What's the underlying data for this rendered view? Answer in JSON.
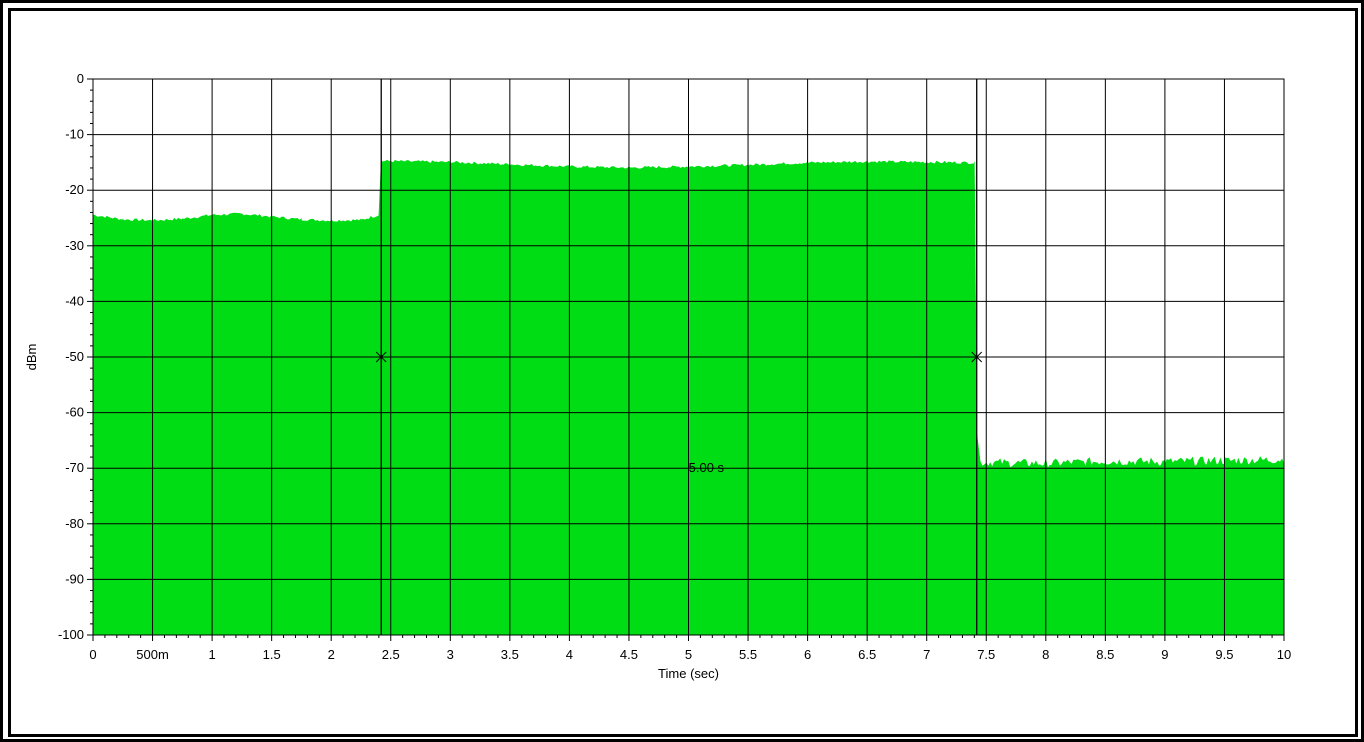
{
  "chart_data": {
    "type": "area",
    "xlabel": "Time (sec)",
    "ylabel": "dBm",
    "xlim": [
      0,
      10
    ],
    "ylim": [
      -100,
      0
    ],
    "grid": true,
    "x_ticks": [
      0,
      0.5,
      1,
      1.5,
      2,
      2.5,
      3,
      3.5,
      4,
      4.5,
      5,
      5.5,
      6,
      6.5,
      7,
      7.5,
      8,
      8.5,
      9,
      9.5,
      10
    ],
    "x_tick_labels": [
      "0",
      "500m",
      "1",
      "1.5",
      "2",
      "2.5",
      "3",
      "3.5",
      "4",
      "4.5",
      "5",
      "5.5",
      "6",
      "6.5",
      "7",
      "7.5",
      "8",
      "8.5",
      "9",
      "9.5",
      "10"
    ],
    "y_ticks": [
      0,
      -10,
      -20,
      -30,
      -40,
      -50,
      -60,
      -70,
      -80,
      -90,
      -100
    ],
    "y_tick_labels": [
      "0",
      "-10",
      "-20",
      "-30",
      "-40",
      "-50",
      "-60",
      "-70",
      "-80",
      "-90",
      "-100"
    ],
    "series": [
      {
        "fill_color": "#00dd15",
        "points": [
          [
            0,
            -24.5
          ],
          [
            0.25,
            -25.3
          ],
          [
            0.5,
            -25.5
          ],
          [
            0.75,
            -25.2
          ],
          [
            1.0,
            -24.5
          ],
          [
            1.25,
            -24.3
          ],
          [
            1.5,
            -24.8
          ],
          [
            1.75,
            -25.3
          ],
          [
            2.0,
            -25.5
          ],
          [
            2.25,
            -25.4
          ],
          [
            2.4,
            -24.5
          ],
          [
            2.42,
            -14.8
          ],
          [
            3.0,
            -15.0
          ],
          [
            3.5,
            -15.4
          ],
          [
            4.0,
            -15.8
          ],
          [
            4.5,
            -16.0
          ],
          [
            5.0,
            -15.8
          ],
          [
            5.5,
            -15.5
          ],
          [
            6.0,
            -15.1
          ],
          [
            6.5,
            -14.9
          ],
          [
            7.0,
            -15.0
          ],
          [
            7.4,
            -15.1
          ],
          [
            7.42,
            -63.5
          ],
          [
            7.45,
            -69.0
          ],
          [
            8.0,
            -69.2
          ],
          [
            8.5,
            -68.8
          ],
          [
            9.0,
            -68.9
          ],
          [
            9.5,
            -68.7
          ],
          [
            10.0,
            -68.5
          ]
        ]
      }
    ],
    "cursors": [
      {
        "x": 2.42,
        "y": -50
      },
      {
        "x": 7.42,
        "y": -50
      }
    ],
    "annotations": [
      {
        "text": "5.00 s",
        "x": 5.15,
        "y": -70
      }
    ]
  }
}
